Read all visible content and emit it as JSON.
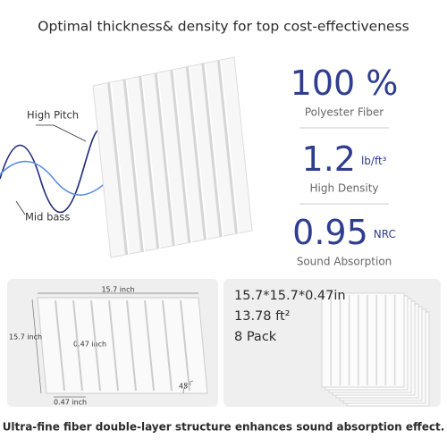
{
  "header": {
    "title": "Optimal thickness& density for top cost-effectiveness"
  },
  "waves": {
    "high_label": "High Pitch",
    "low_label": "Mid bass"
  },
  "stats": [
    {
      "value": "100 %",
      "unit": "",
      "label": "Polyester Fiber"
    },
    {
      "value": "1.2",
      "unit": "lb/ft³",
      "label": "High Density"
    },
    {
      "value": "0.95",
      "unit": "NRC",
      "label": "Sound Absorption"
    }
  ],
  "diagram": {
    "width": "15.7 inch",
    "height": "15.7 inch",
    "groove": "0.47 inch",
    "thickness": "0.47 inch",
    "angle": "45°"
  },
  "specs": [
    "15.7*15.7*0.47in",
    "13.78 ft²",
    "8 Pack"
  ],
  "footer": "Ultra-fine fiber double-layer structure enhances sound absorption effect."
}
